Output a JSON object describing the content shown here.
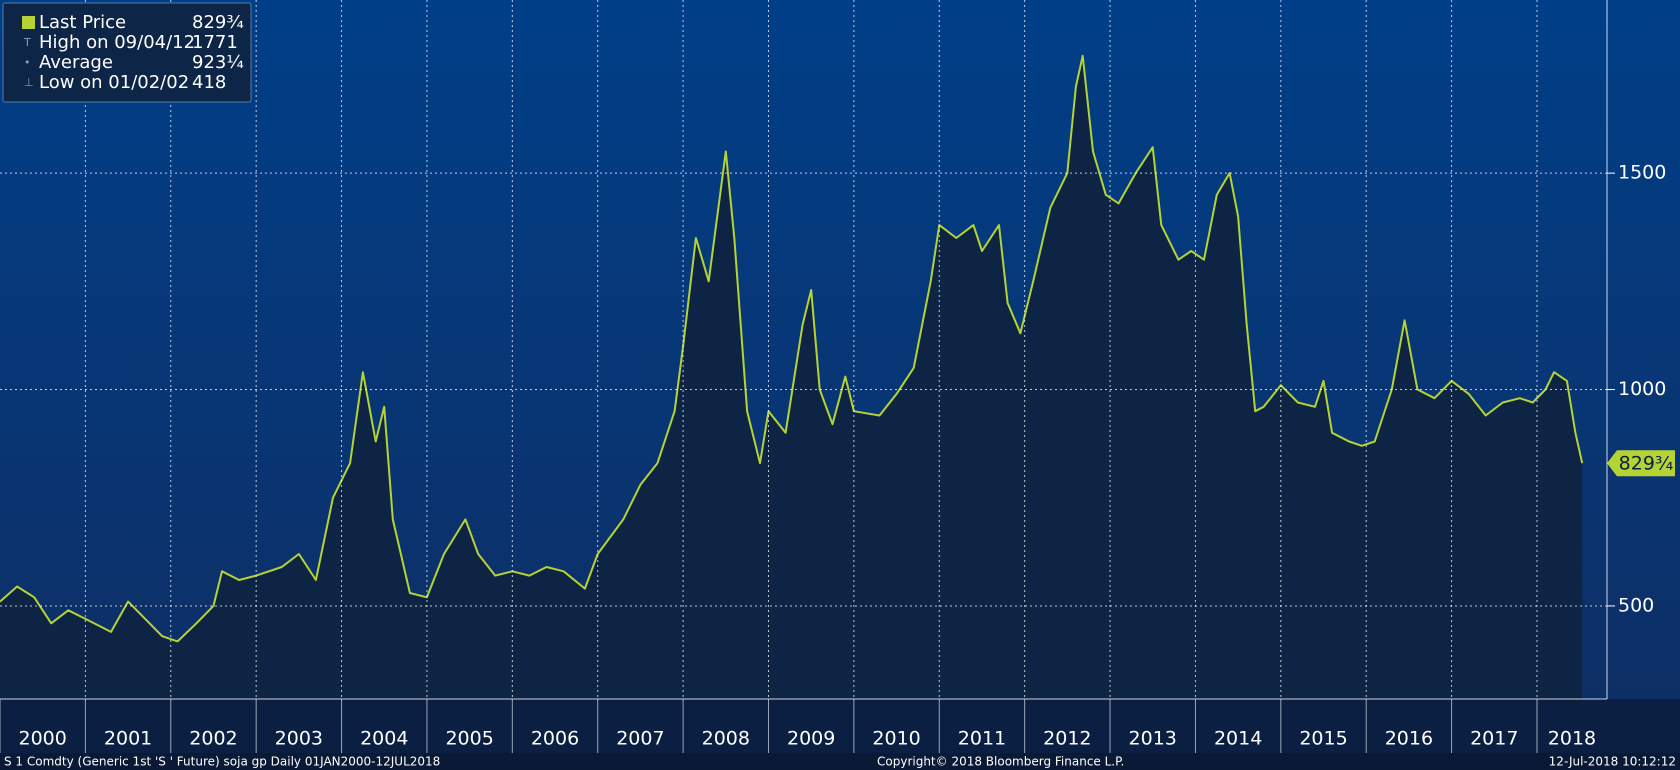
{
  "chart_data": {
    "type": "area",
    "series": [
      {
        "name": "Last Price",
        "color": "#b5d334",
        "last": 829.75,
        "last_label": "829¾",
        "x": [
          2000.0,
          2000.2,
          2000.4,
          2000.6,
          2000.8,
          2001.0,
          2001.3,
          2001.5,
          2001.7,
          2001.9,
          2002.08,
          2002.3,
          2002.5,
          2002.6,
          2002.8,
          2003.0,
          2003.3,
          2003.5,
          2003.7,
          2003.9,
          2004.1,
          2004.25,
          2004.4,
          2004.5,
          2004.6,
          2004.8,
          2005.0,
          2005.2,
          2005.45,
          2005.6,
          2005.8,
          2006.0,
          2006.2,
          2006.4,
          2006.6,
          2006.85,
          2007.0,
          2007.3,
          2007.5,
          2007.7,
          2007.9,
          2008.0,
          2008.15,
          2008.3,
          2008.5,
          2008.6,
          2008.75,
          2008.9,
          2009.0,
          2009.2,
          2009.4,
          2009.5,
          2009.6,
          2009.75,
          2009.9,
          2010.0,
          2010.3,
          2010.5,
          2010.7,
          2010.9,
          2011.0,
          2011.2,
          2011.4,
          2011.5,
          2011.7,
          2011.8,
          2011.95,
          2012.1,
          2012.3,
          2012.5,
          2012.6,
          2012.68,
          2012.8,
          2012.95,
          2013.1,
          2013.3,
          2013.5,
          2013.6,
          2013.8,
          2013.95,
          2014.1,
          2014.25,
          2014.4,
          2014.5,
          2014.6,
          2014.7,
          2014.8,
          2015.0,
          2015.2,
          2015.4,
          2015.5,
          2015.6,
          2015.8,
          2015.95,
          2016.1,
          2016.3,
          2016.45,
          2016.6,
          2016.8,
          2017.0,
          2017.2,
          2017.4,
          2017.6,
          2017.8,
          2017.95,
          2018.1,
          2018.2,
          2018.35,
          2018.45,
          2018.53
        ],
        "values": [
          510,
          545,
          520,
          460,
          490,
          470,
          440,
          510,
          470,
          430,
          418,
          460,
          500,
          580,
          560,
          570,
          590,
          620,
          560,
          750,
          830,
          1040,
          880,
          960,
          700,
          530,
          520,
          620,
          700,
          620,
          570,
          580,
          570,
          590,
          580,
          540,
          620,
          700,
          780,
          830,
          950,
          1100,
          1350,
          1250,
          1550,
          1350,
          950,
          830,
          950,
          900,
          1150,
          1230,
          1000,
          920,
          1030,
          950,
          940,
          990,
          1050,
          1250,
          1380,
          1350,
          1380,
          1320,
          1380,
          1200,
          1130,
          1250,
          1420,
          1500,
          1700,
          1771,
          1550,
          1450,
          1430,
          1500,
          1560,
          1380,
          1300,
          1320,
          1300,
          1450,
          1500,
          1400,
          1150,
          950,
          960,
          1010,
          970,
          960,
          1020,
          900,
          880,
          870,
          880,
          1000,
          1160,
          1000,
          980,
          1020,
          990,
          940,
          970,
          980,
          970,
          1000,
          1040,
          1020,
          900,
          829.75
        ]
      }
    ],
    "stats": [
      {
        "label": "High on 09/04/12",
        "value": 1771
      },
      {
        "label": "Average",
        "value": 923.25,
        "value_label": "923¼"
      },
      {
        "label": "Low on 01/02/02",
        "value": 418
      }
    ],
    "xlim": [
      2000,
      2018.82
    ],
    "xticks": [
      2000,
      2001,
      2002,
      2003,
      2004,
      2005,
      2006,
      2007,
      2008,
      2009,
      2010,
      2011,
      2012,
      2013,
      2014,
      2015,
      2016,
      2017,
      2018
    ],
    "ylim": [
      285,
      1900
    ],
    "yticks": [
      500,
      1000,
      1500
    ],
    "grid": true,
    "footer_left": "S 1 Comdty (Generic 1st 'S ' Future) soja gp  Daily 01JAN2000-12JUL2018",
    "footer_center": "Copyright© 2018 Bloomberg Finance L.P.",
    "footer_right": "12-Jul-2018 10:12:12"
  }
}
